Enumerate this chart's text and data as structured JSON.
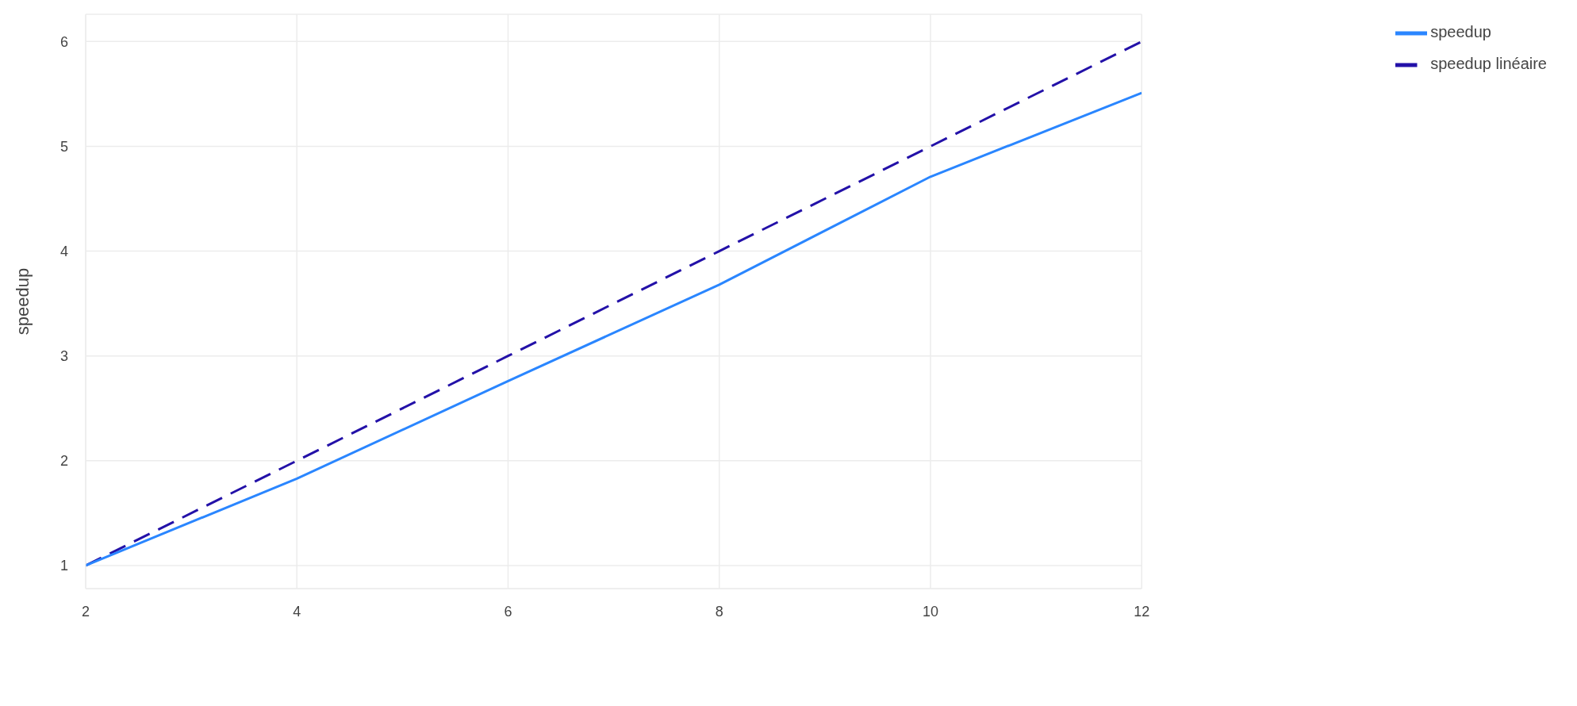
{
  "chart_data": {
    "type": "line",
    "ylabel": "speedup",
    "x": [
      2,
      4,
      6,
      8,
      10,
      12
    ],
    "series": [
      {
        "name": "speedup linéaire",
        "color": "#2311a8",
        "line_style": "dashed",
        "values": [
          1,
          2,
          3,
          4,
          5,
          6
        ]
      },
      {
        "name": "speedup",
        "color": "#2a86ff",
        "line_style": "solid",
        "values": [
          1,
          1.83,
          2.76,
          3.68,
          4.71,
          5.51
        ]
      }
    ],
    "xlim": [
      2,
      12
    ],
    "xticks": [
      2,
      4,
      6,
      8,
      10,
      12
    ],
    "ylim": [
      0.78,
      6.26
    ],
    "yticks": [
      1,
      2,
      3,
      4,
      5,
      6
    ],
    "grid": true,
    "legend": "top right",
    "marker": "none"
  }
}
